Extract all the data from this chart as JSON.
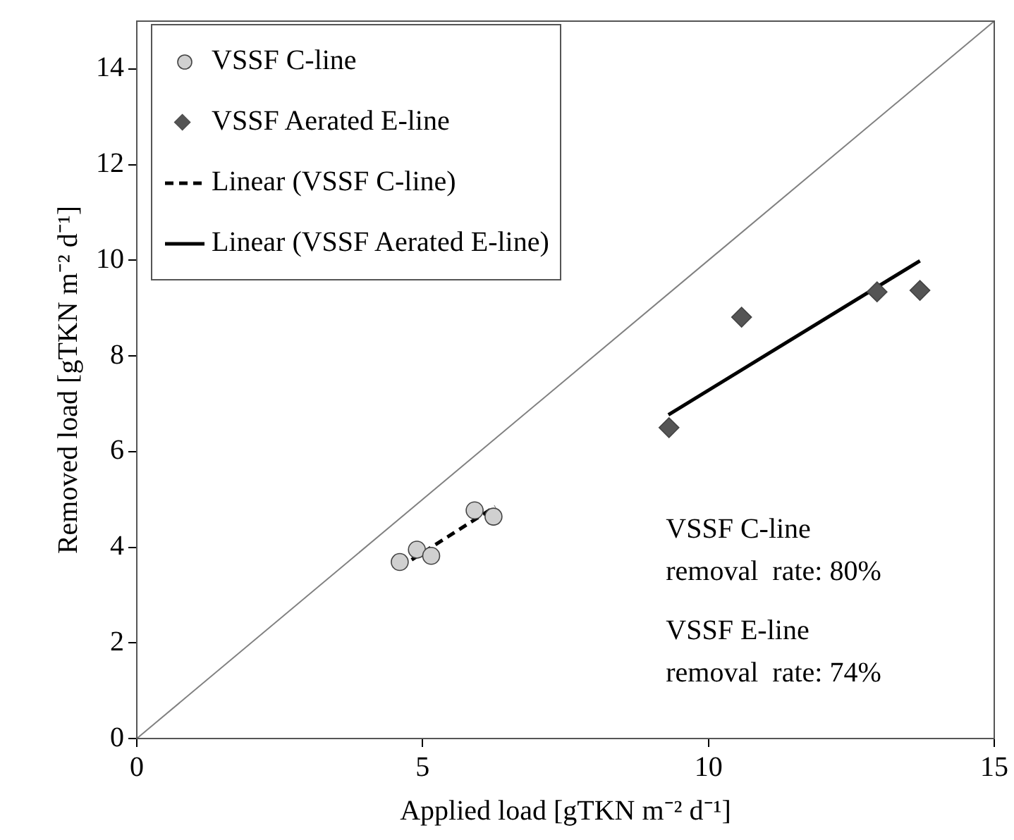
{
  "chart_data": {
    "type": "scatter",
    "xlabel": "Applied load [gTKN m⁻² d⁻¹]",
    "ylabel": "Removed load [gTKN m⁻² d⁻¹]",
    "xlim": [
      0,
      15
    ],
    "ylim": [
      0,
      15
    ],
    "xticks": [
      0,
      5,
      10,
      15
    ],
    "yticks": [
      0,
      2,
      4,
      6,
      8,
      10,
      12,
      14
    ],
    "grid": false,
    "legend": "top left",
    "series": [
      {
        "name": "VSSF C-line",
        "type": "scatter",
        "marker": "circle",
        "color": "#d0d0d0",
        "x": [
          4.6,
          4.9,
          5.15,
          5.91,
          6.24
        ],
        "values": [
          3.69,
          3.95,
          3.82,
          4.77,
          4.64
        ]
      },
      {
        "name": "VSSF Aerated E-line",
        "type": "scatter",
        "marker": "diamond",
        "color": "#555555",
        "x": [
          9.31,
          10.58,
          12.95,
          13.7
        ],
        "values": [
          6.5,
          8.81,
          9.34,
          9.37
        ]
      },
      {
        "name": "Linear (VSSF C-line)",
        "type": "line",
        "marker": "none",
        "line_style": "dashed",
        "color": "#000000",
        "x": [
          4.6,
          6.27
        ],
        "values": [
          3.58,
          4.85
        ]
      },
      {
        "name": "Linear (VSSF Aerated E-line)",
        "type": "line",
        "marker": "none",
        "line_style": "solid",
        "color": "#000000",
        "x": [
          9.3,
          13.7
        ],
        "values": [
          6.77,
          9.99
        ]
      },
      {
        "type": "line",
        "marker": "none",
        "line_style": "solid",
        "color": "#808080",
        "x": [
          0,
          15
        ],
        "values": [
          0,
          15
        ]
      }
    ],
    "annotations": [
      "VSSF C-line\nremoval  rate: 80%",
      "VSSF E-line\nremoval  rate: 74%"
    ]
  }
}
